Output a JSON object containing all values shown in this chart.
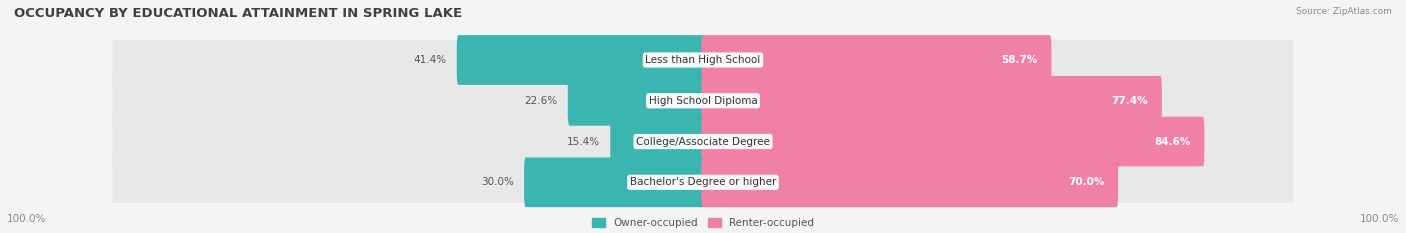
{
  "title": "OCCUPANCY BY EDUCATIONAL ATTAINMENT IN SPRING LAKE",
  "source": "Source: ZipAtlas.com",
  "categories": [
    "Less than High School",
    "High School Diploma",
    "College/Associate Degree",
    "Bachelor's Degree or higher"
  ],
  "owner_pct": [
    41.4,
    22.6,
    15.4,
    30.0
  ],
  "renter_pct": [
    58.7,
    77.4,
    84.6,
    70.0
  ],
  "owner_color": "#3ab5b0",
  "renter_color": "#f080a8",
  "bg_color": "#f4f4f4",
  "row_bg_color": "#e8e8e8",
  "title_fontsize": 9.5,
  "label_fontsize": 7.5,
  "annotation_fontsize": 7.5,
  "legend_fontsize": 7.5,
  "source_fontsize": 6.5
}
